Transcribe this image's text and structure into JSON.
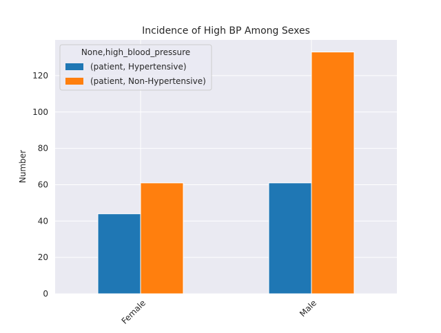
{
  "chart_data": {
    "type": "bar",
    "title": "Incidence of High BP Among Sexes",
    "xlabel": "",
    "ylabel": "Number",
    "categories": [
      "Female",
      "Male"
    ],
    "series": [
      {
        "name": "(patient, Hypertensive)",
        "values": [
          44,
          61
        ],
        "color": "#1f77b4"
      },
      {
        "name": "(patient, Non-Hypertensive)",
        "values": [
          61,
          133
        ],
        "color": "#ff7f0e"
      }
    ],
    "ylim": [
      0,
      139.65
    ],
    "yticks": [
      0,
      20,
      40,
      60,
      80,
      100,
      120
    ],
    "legend": {
      "title": "None,high_blood_pressure",
      "placement": "top-left"
    },
    "grid": true,
    "background_color": "#eaeaf2",
    "grid_color": "#ffffff"
  }
}
